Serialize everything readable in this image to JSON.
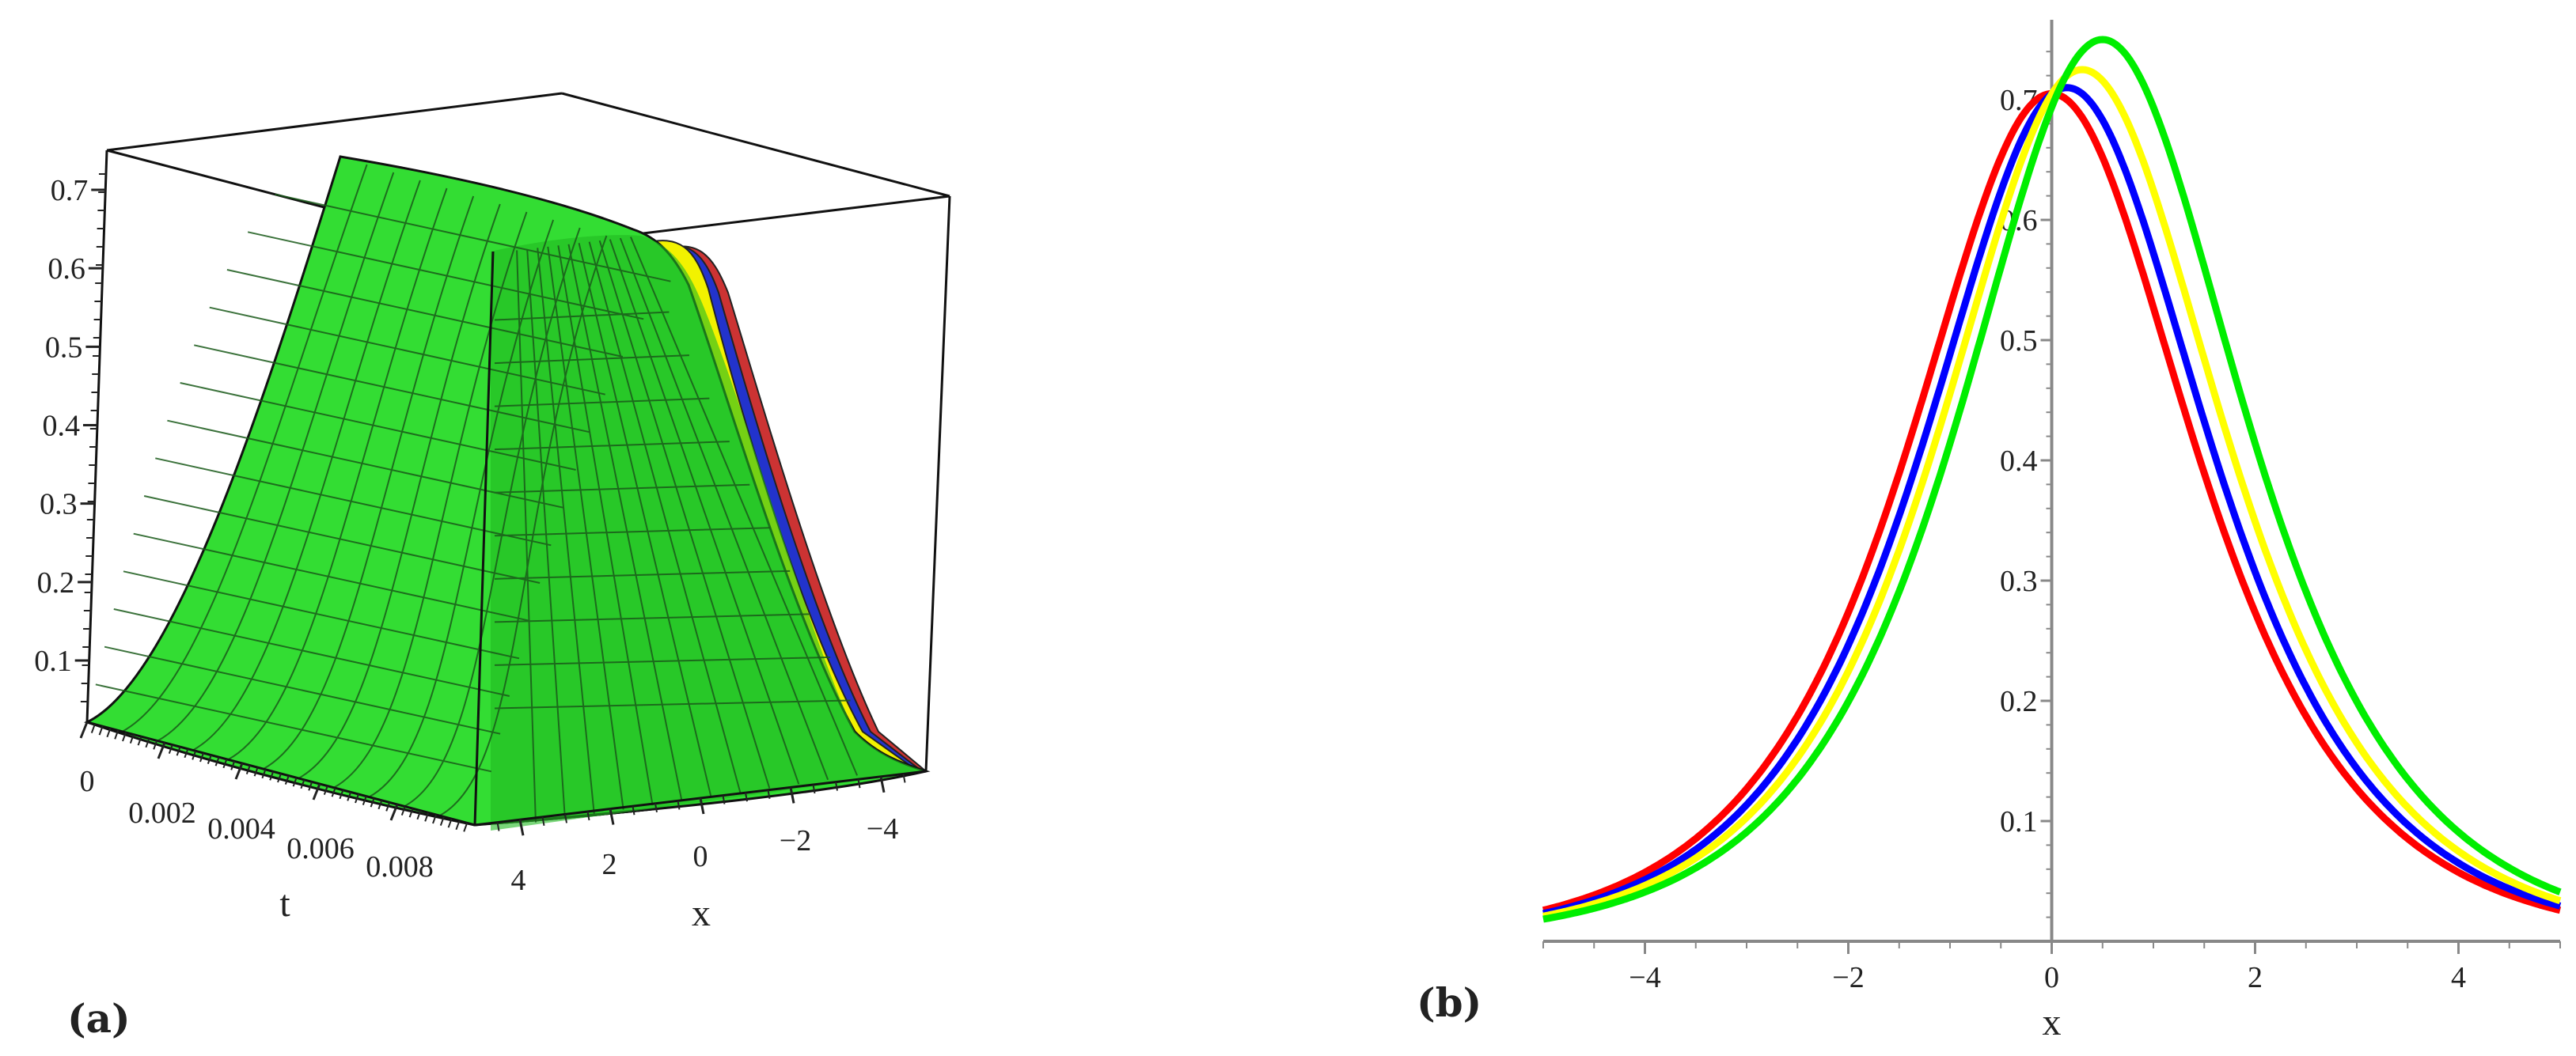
{
  "panels": {
    "a_label": "(a)",
    "b_label": "(b)"
  },
  "chart_data": [
    {
      "type": "surface",
      "panel": "(a)",
      "xlabel": "x",
      "tlabel": "t",
      "x_range": [
        -5,
        5
      ],
      "t_range": [
        0,
        0.01
      ],
      "z_range": [
        0,
        0.75
      ],
      "z_ticks": [
        "0.1",
        "0.2",
        "0.3",
        "0.4",
        "0.5",
        "0.6",
        "0.7"
      ],
      "x_ticks": [
        "4",
        "2",
        "0",
        "−2",
        "−4"
      ],
      "t_ticks": [
        "0",
        "0.002",
        "0.004",
        "0.006",
        "0.008"
      ],
      "surface_colors": [
        "#ff0000",
        "#0000ff",
        "#ffff00",
        "#00ee00"
      ]
    },
    {
      "type": "line",
      "panel": "(b)",
      "xlabel": "x",
      "ylabel": "",
      "xlim": [
        -5,
        5
      ],
      "ylim": [
        0,
        0.75
      ],
      "x_ticks": [
        "−4",
        "−2",
        "0",
        "2",
        "4"
      ],
      "y_ticks": [
        "0.1",
        "0.2",
        "0.3",
        "0.4",
        "0.5",
        "0.6",
        "0.7"
      ],
      "grid": false,
      "series": [
        {
          "color": "#ff0000",
          "shift": 0.0,
          "peak": 0.705,
          "x": [
            -5,
            -4,
            -3,
            -2,
            -1,
            0,
            1,
            2,
            3,
            4,
            5
          ],
          "y": [
            0.012,
            0.032,
            0.088,
            0.22,
            0.48,
            0.705,
            0.48,
            0.22,
            0.088,
            0.032,
            0.012
          ]
        },
        {
          "color": "#0000ff",
          "shift": 0.15,
          "peak": 0.71,
          "x": [
            -5,
            -4,
            -3,
            -2,
            -1,
            0,
            1,
            2,
            3,
            4,
            5
          ],
          "y": [
            0.011,
            0.03,
            0.082,
            0.205,
            0.455,
            0.705,
            0.5,
            0.235,
            0.095,
            0.035,
            0.013
          ]
        },
        {
          "color": "#ffff00",
          "shift": 0.3,
          "peak": 0.725,
          "x": [
            -5,
            -4,
            -3,
            -2,
            -1,
            0,
            1,
            2,
            3,
            4,
            5
          ],
          "y": [
            0.009,
            0.026,
            0.072,
            0.185,
            0.43,
            0.705,
            0.53,
            0.255,
            0.105,
            0.038,
            0.015
          ]
        },
        {
          "color": "#00ee00",
          "shift": 0.5,
          "peak": 0.75,
          "x": [
            -5,
            -4,
            -3,
            -2,
            -1,
            0,
            1,
            2,
            3,
            4,
            5
          ],
          "y": [
            0.007,
            0.021,
            0.06,
            0.16,
            0.39,
            0.705,
            0.575,
            0.285,
            0.118,
            0.043,
            0.018
          ]
        }
      ]
    }
  ]
}
